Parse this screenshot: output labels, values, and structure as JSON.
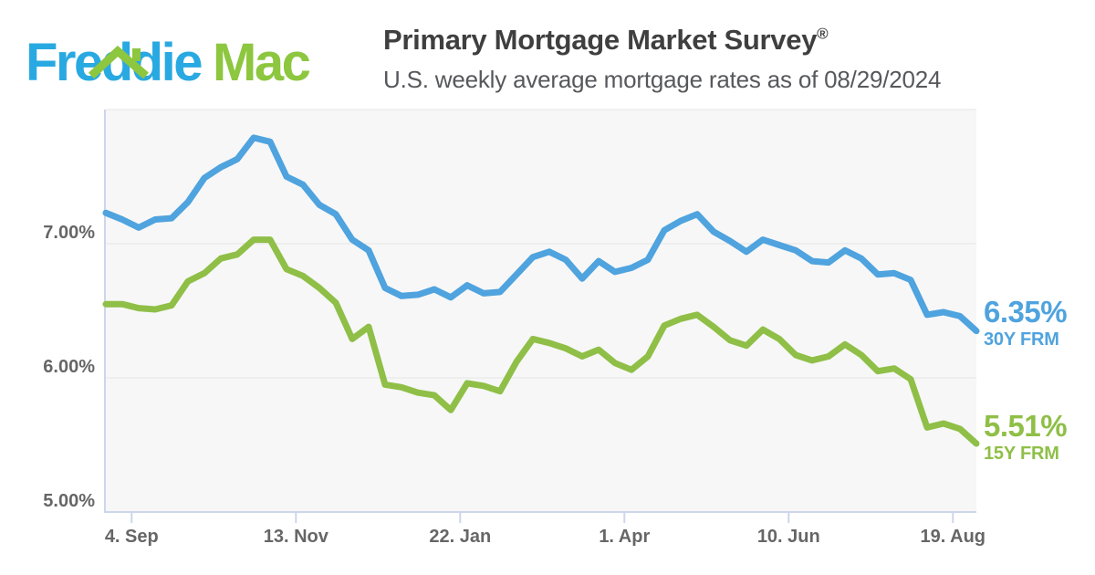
{
  "logo": {
    "freddie": "Freddie",
    "mac": "Mac",
    "freddie_color": "#29A9E1",
    "mac_color": "#8DC63F"
  },
  "header": {
    "title": "Primary Mortgage Market Survey",
    "registered": "®",
    "subtitle": "U.S. weekly average mortgage rates as of 08/29/2024"
  },
  "chart_data": {
    "type": "line",
    "title": "Primary Mortgage Market Survey",
    "subtitle": "U.S. weekly average mortgage rates as of 08/29/2024",
    "date_start": "2023-08-24",
    "date_end": "2024-08-29",
    "days_total": 371,
    "point_interval_days": 7,
    "ylim": [
      5,
      8
    ],
    "ygrid": [
      6,
      7,
      8
    ],
    "grid": "horizontal-only",
    "legend": "end-of-line labels at right",
    "yticks": [
      {
        "label": "7.00%",
        "value": 7
      },
      {
        "label": "6.00%",
        "value": 6
      },
      {
        "label": "5.00%",
        "value": 5
      }
    ],
    "xticks": [
      {
        "label": "4. Sep",
        "day": 11
      },
      {
        "label": "13. Nov",
        "day": 81
      },
      {
        "label": "22. Jan",
        "day": 151
      },
      {
        "label": "1. Apr",
        "day": 221
      },
      {
        "label": "10. Jun",
        "day": 291
      },
      {
        "label": "19. Aug",
        "day": 361
      }
    ],
    "colors": {
      "plot_bg": "#F7F7F7",
      "gridline": "#E6E6E6",
      "axis": "#CCD6EB",
      "axis_label": "#666666"
    },
    "series": [
      {
        "name": "30Y FRM",
        "end_label": "6.35%",
        "color": "#4FA3DE",
        "values": [
          7.23,
          7.18,
          7.12,
          7.18,
          7.19,
          7.31,
          7.49,
          7.57,
          7.63,
          7.79,
          7.76,
          7.5,
          7.44,
          7.29,
          7.22,
          7.03,
          6.95,
          6.67,
          6.61,
          6.62,
          6.66,
          6.6,
          6.69,
          6.63,
          6.64,
          6.77,
          6.9,
          6.94,
          6.88,
          6.74,
          6.87,
          6.79,
          6.82,
          6.88,
          7.1,
          7.17,
          7.22,
          7.09,
          7.02,
          6.94,
          7.03,
          6.99,
          6.95,
          6.87,
          6.86,
          6.95,
          6.89,
          6.77,
          6.78,
          6.73,
          6.47,
          6.49,
          6.46,
          6.35
        ]
      },
      {
        "name": "15Y FRM",
        "end_label": "5.51%",
        "color": "#8FBF47",
        "values": [
          6.55,
          6.55,
          6.52,
          6.51,
          6.54,
          6.72,
          6.78,
          6.89,
          6.92,
          7.03,
          7.03,
          6.81,
          6.76,
          6.67,
          6.56,
          6.29,
          6.38,
          5.95,
          5.93,
          5.89,
          5.87,
          5.76,
          5.96,
          5.94,
          5.9,
          6.12,
          6.29,
          6.26,
          6.22,
          6.16,
          6.21,
          6.11,
          6.06,
          6.16,
          6.39,
          6.44,
          6.47,
          6.38,
          6.28,
          6.24,
          6.36,
          6.29,
          6.17,
          6.13,
          6.16,
          6.25,
          6.17,
          6.05,
          6.07,
          5.99,
          5.63,
          5.66,
          5.62,
          5.51
        ]
      }
    ]
  }
}
